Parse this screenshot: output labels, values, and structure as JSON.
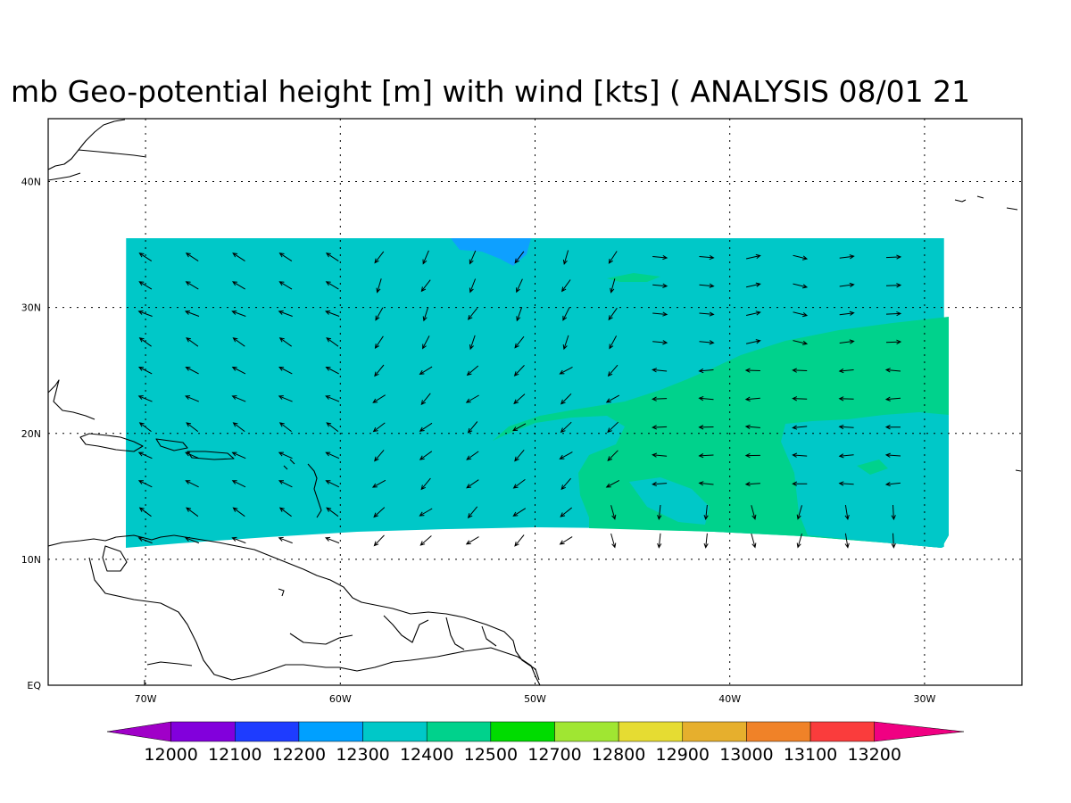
{
  "title": "mb Geo-potential height [m] with wind [kts] ( ANALYSIS 08/01 21",
  "map": {
    "lon_range": [
      -75,
      -25
    ],
    "lat_range": [
      0,
      45
    ],
    "lon_ticks": [
      {
        "lon": -70,
        "label": "70W"
      },
      {
        "lon": -60,
        "label": "60W"
      },
      {
        "lon": -50,
        "label": "50W"
      },
      {
        "lon": -40,
        "label": "40W"
      },
      {
        "lon": -30,
        "label": "30W"
      }
    ],
    "lat_ticks": [
      {
        "lat": 0,
        "label": "EQ"
      },
      {
        "lat": 10,
        "label": "10N"
      },
      {
        "lat": 20,
        "label": "20N"
      },
      {
        "lat": 30,
        "label": "30N"
      },
      {
        "lat": 40,
        "label": "40N"
      }
    ],
    "grid": "dotted",
    "analysis_domain": {
      "lon": [
        -71,
        -29
      ],
      "lat": [
        11,
        35.5
      ]
    },
    "fill_levels": [
      {
        "range": "12200-12300",
        "color": "#0ea0ff",
        "region": "small patch near 52W 35N"
      },
      {
        "range": "12300-12400",
        "color": "#00c8c8",
        "region": "most of domain"
      },
      {
        "range": "12400-12500",
        "color": "#00d28c",
        "region": "southeastern part (east of ~48W, south of ~28N)"
      }
    ]
  },
  "colorbar": {
    "labels": [
      "12000",
      "12100",
      "12200",
      "12300",
      "12400",
      "12500",
      "12700",
      "12800",
      "12900",
      "13000",
      "13100",
      "13200"
    ],
    "colors": [
      "#a000c8",
      "#8200dc",
      "#1e3cff",
      "#00a0ff",
      "#00c8c8",
      "#00d28c",
      "#00dc00",
      "#a0e632",
      "#e6dc32",
      "#e6af2d",
      "#f08228",
      "#fa3c3c",
      "#f00082"
    ]
  },
  "wind_vectors_note": "arrows on ~5 degree grid showing wind direction"
}
